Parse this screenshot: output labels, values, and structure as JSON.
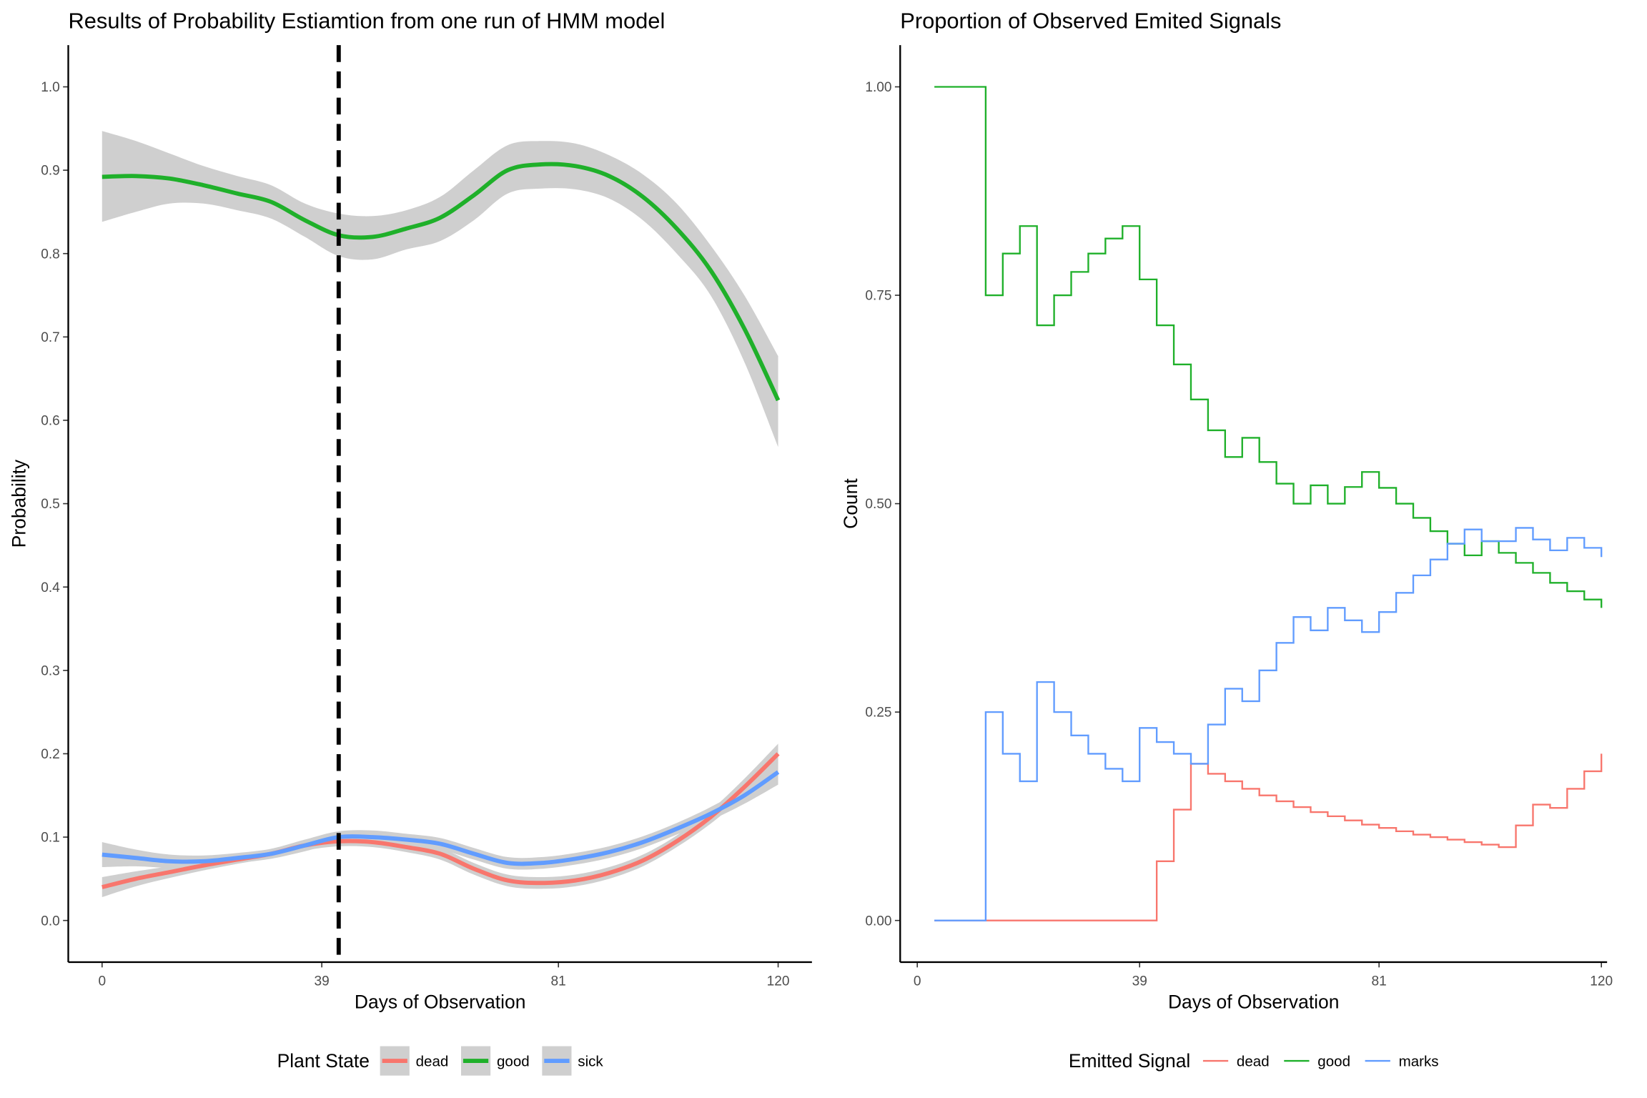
{
  "chart_data": [
    {
      "type": "smooth",
      "title": "Results of Probability Estiamtion from one run of HMM model",
      "x_label": "Days of Observation",
      "y_label": "Probability",
      "x": [
        0,
        6,
        12,
        18,
        24,
        30,
        36,
        42,
        48,
        54,
        60,
        66,
        72,
        78,
        84,
        90,
        96,
        102,
        108,
        114,
        120
      ],
      "xlim": [
        -6,
        126
      ],
      "ylim": [
        -0.05,
        1.05
      ],
      "xticks": [
        0,
        39,
        81,
        120
      ],
      "yticks": [
        {
          "value": 0,
          "label": "0.0"
        },
        0.1,
        0.2,
        0.3,
        0.4,
        0.5,
        0.6,
        0.7,
        0.8,
        0.9,
        {
          "value": 1,
          "label": "1.0"
        }
      ],
      "vline": 42,
      "ribbon_color": "#cfcfcf",
      "legend_title": "Plant State",
      "legend_position": "bottom",
      "series": [
        {
          "name": "dead",
          "color": "#f8766d",
          "values": [
            0.04,
            0.05,
            0.058,
            0.066,
            0.073,
            0.08,
            0.09,
            0.095,
            0.094,
            0.088,
            0.08,
            0.062,
            0.048,
            0.045,
            0.048,
            0.057,
            0.072,
            0.095,
            0.124,
            0.16,
            0.2
          ],
          "lower": [
            0.028,
            0.041,
            0.051,
            0.06,
            0.068,
            0.075,
            0.084,
            0.089,
            0.088,
            0.082,
            0.073,
            0.055,
            0.041,
            0.038,
            0.041,
            0.05,
            0.065,
            0.088,
            0.116,
            0.15,
            0.188
          ],
          "upper": [
            0.052,
            0.059,
            0.065,
            0.072,
            0.078,
            0.085,
            0.096,
            0.101,
            0.1,
            0.094,
            0.087,
            0.069,
            0.055,
            0.052,
            0.055,
            0.064,
            0.079,
            0.102,
            0.132,
            0.17,
            0.212
          ]
        },
        {
          "name": "good",
          "color": "#1fb02a",
          "values": [
            0.892,
            0.893,
            0.89,
            0.882,
            0.872,
            0.862,
            0.84,
            0.822,
            0.82,
            0.83,
            0.843,
            0.87,
            0.9,
            0.907,
            0.905,
            0.893,
            0.868,
            0.83,
            0.78,
            0.71,
            0.624
          ],
          "lower": [
            0.838,
            0.85,
            0.86,
            0.86,
            0.852,
            0.842,
            0.82,
            0.797,
            0.793,
            0.805,
            0.815,
            0.84,
            0.872,
            0.878,
            0.877,
            0.866,
            0.84,
            0.8,
            0.75,
            0.67,
            0.568
          ],
          "upper": [
            0.947,
            0.935,
            0.92,
            0.905,
            0.893,
            0.882,
            0.86,
            0.848,
            0.845,
            0.852,
            0.868,
            0.9,
            0.93,
            0.935,
            0.932,
            0.918,
            0.895,
            0.86,
            0.81,
            0.75,
            0.677
          ]
        },
        {
          "name": "sick",
          "color": "#619cff",
          "values": [
            0.079,
            0.075,
            0.071,
            0.071,
            0.075,
            0.08,
            0.09,
            0.1,
            0.1,
            0.097,
            0.092,
            0.08,
            0.069,
            0.069,
            0.074,
            0.082,
            0.094,
            0.11,
            0.128,
            0.15,
            0.178
          ],
          "lower": [
            0.064,
            0.065,
            0.063,
            0.064,
            0.069,
            0.074,
            0.083,
            0.093,
            0.092,
            0.09,
            0.085,
            0.073,
            0.062,
            0.062,
            0.067,
            0.075,
            0.087,
            0.103,
            0.12,
            0.14,
            0.163
          ],
          "upper": [
            0.094,
            0.085,
            0.079,
            0.078,
            0.081,
            0.086,
            0.097,
            0.107,
            0.108,
            0.104,
            0.099,
            0.087,
            0.076,
            0.076,
            0.081,
            0.089,
            0.101,
            0.117,
            0.136,
            0.16,
            0.193
          ]
        }
      ]
    },
    {
      "type": "step",
      "title": "Proportion of Observed Emited Signals",
      "x_label": "Days of Observation",
      "y_label": "Count",
      "x": [
        3,
        6,
        9,
        12,
        15,
        18,
        21,
        24,
        27,
        30,
        33,
        36,
        39,
        42,
        45,
        48,
        51,
        54,
        57,
        60,
        63,
        66,
        69,
        72,
        75,
        78,
        81,
        84,
        87,
        90,
        93,
        96,
        99,
        102,
        105,
        108,
        111,
        114,
        117,
        120
      ],
      "xlim": [
        -3,
        121
      ],
      "ylim": [
        -0.05,
        1.05
      ],
      "xticks": [
        0,
        39,
        81,
        120
      ],
      "yticks": [
        {
          "value": 0,
          "label": "0.00"
        },
        0.25,
        {
          "value": 0.5,
          "label": "0.50"
        },
        0.75,
        {
          "value": 1,
          "label": "1.00"
        }
      ],
      "legend_title": "Emitted Signal",
      "legend_position": "bottom",
      "series": [
        {
          "name": "dead",
          "color": "#f8766d",
          "values": [
            0,
            0,
            0,
            0,
            0,
            0,
            0,
            0,
            0,
            0,
            0,
            0,
            0,
            0.071,
            0.133,
            0.188,
            0.176,
            0.167,
            0.158,
            0.15,
            0.143,
            0.136,
            0.13,
            0.125,
            0.12,
            0.115,
            0.111,
            0.107,
            0.103,
            0.1,
            0.097,
            0.094,
            0.091,
            0.088,
            0.114,
            0.139,
            0.135,
            0.158,
            0.179,
            0.2
          ]
        },
        {
          "name": "good",
          "color": "#1fb02a",
          "values": [
            1,
            1,
            1,
            0.75,
            0.8,
            0.833,
            0.714,
            0.75,
            0.778,
            0.8,
            0.818,
            0.833,
            0.769,
            0.714,
            0.667,
            0.625,
            0.588,
            0.556,
            0.579,
            0.55,
            0.524,
            0.5,
            0.522,
            0.5,
            0.52,
            0.538,
            0.519,
            0.5,
            0.483,
            0.467,
            0.452,
            0.438,
            0.455,
            0.441,
            0.429,
            0.417,
            0.405,
            0.395,
            0.385,
            0.375
          ]
        },
        {
          "name": "marks",
          "color": "#619cff",
          "values": [
            0,
            0,
            0,
            0.25,
            0.2,
            0.167,
            0.286,
            0.25,
            0.222,
            0.2,
            0.182,
            0.167,
            0.231,
            0.214,
            0.2,
            0.188,
            0.235,
            0.278,
            0.263,
            0.3,
            0.333,
            0.364,
            0.348,
            0.375,
            0.36,
            0.346,
            0.37,
            0.393,
            0.414,
            0.433,
            0.452,
            0.469,
            0.455,
            0.455,
            0.471,
            0.457,
            0.444,
            0.459,
            0.447,
            0.436
          ]
        }
      ]
    }
  ]
}
